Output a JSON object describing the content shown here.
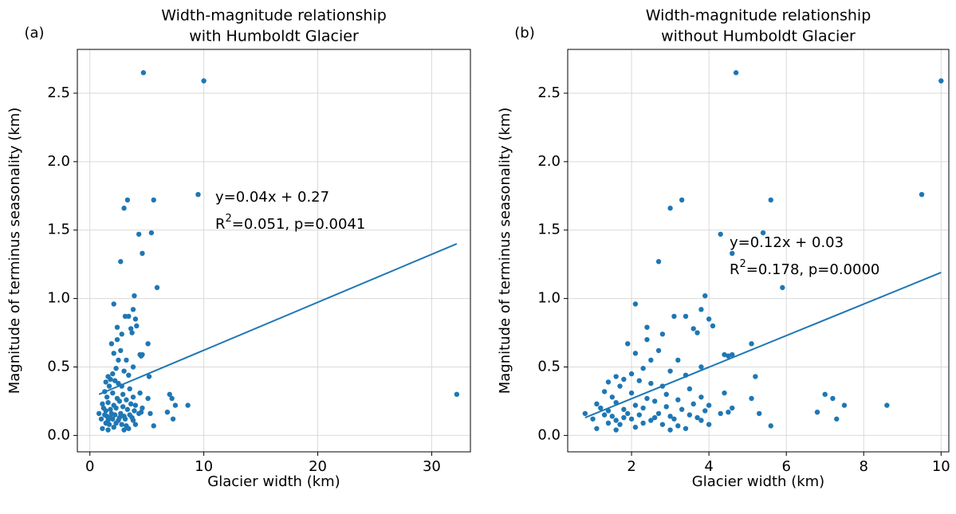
{
  "chart_data": [
    {
      "type": "scatter",
      "panel_label": "(a)",
      "title": [
        "Width-magnitude relationship",
        "with Humboldt Glacier"
      ],
      "xlabel": "Glacier width (km)",
      "ylabel": "Magnitude of terminus seasonality (km)",
      "xlim": [
        -1.1,
        33.4
      ],
      "ylim": [
        -0.12,
        2.82
      ],
      "xticks": [
        0,
        10,
        20,
        30
      ],
      "yticks": [
        {
          "value": 0,
          "label": "0.0"
        },
        0.5,
        {
          "value": 1,
          "label": "1.0"
        },
        1.5,
        {
          "value": 2,
          "label": "2.0"
        },
        2.5
      ],
      "grid": true,
      "series": [
        {
          "color": "#1f77b4",
          "x": [
            4.7,
            10.0,
            9.5,
            3.3,
            5.6,
            3.0,
            4.3,
            5.4,
            4.6,
            2.7,
            5.9,
            3.9,
            2.1,
            3.8,
            3.4,
            3.1,
            3.6,
            3.7,
            4.1,
            4.0,
            2.8,
            2.4,
            2.4,
            1.9,
            2.1,
            2.7,
            5.1,
            2.5,
            3.2,
            4.6,
            4.5,
            3.8,
            2.3,
            1.6,
            2.0,
            3.0,
            2.2,
            3.4,
            5.2,
            1.4,
            1.8,
            2.5,
            1.7,
            2.8,
            3.5,
            1.3,
            2.0,
            2.9,
            4.4,
            7.0,
            7.2,
            5.1,
            3.8,
            1.5,
            2.4,
            3.2,
            1.1,
            1.6,
            2.1,
            2.6,
            3.6,
            4.0,
            7.5,
            8.6,
            1.2,
            1.4,
            1.8,
            2.3,
            2.9,
            3.3,
            3.9,
            4.6,
            4.5,
            6.8,
            0.8,
            1.3,
            1.5,
            1.9,
            2.2,
            2.7,
            3.0,
            3.5,
            4.3,
            5.3,
            1.0,
            1.6,
            2.0,
            2.5,
            3.1,
            3.7,
            7.3,
            1.4,
            1.7,
            2.3,
            2.8,
            3.2,
            4.0,
            5.6,
            1.1,
            1.6,
            3.0,
            2.1,
            3.4,
            2.6,
            1.8,
            3.8,
            4.4,
            32.2
          ],
          "values": [
            2.65,
            2.59,
            1.76,
            1.72,
            1.72,
            1.66,
            1.47,
            1.48,
            1.33,
            1.27,
            1.08,
            1.02,
            0.96,
            0.92,
            0.87,
            0.87,
            0.78,
            0.75,
            0.8,
            0.85,
            0.74,
            0.79,
            0.7,
            0.67,
            0.6,
            0.62,
            0.67,
            0.55,
            0.55,
            0.59,
            0.58,
            0.5,
            0.49,
            0.43,
            0.45,
            0.47,
            0.4,
            0.44,
            0.43,
            0.39,
            0.41,
            0.38,
            0.36,
            0.36,
            0.34,
            0.32,
            0.31,
            0.3,
            0.31,
            0.3,
            0.27,
            0.27,
            0.28,
            0.28,
            0.27,
            0.26,
            0.23,
            0.24,
            0.22,
            0.25,
            0.23,
            0.22,
            0.22,
            0.22,
            0.2,
            0.18,
            0.19,
            0.2,
            0.21,
            0.19,
            0.18,
            0.2,
            0.17,
            0.17,
            0.16,
            0.15,
            0.14,
            0.16,
            0.15,
            0.16,
            0.14,
            0.15,
            0.16,
            0.16,
            0.12,
            0.11,
            0.12,
            0.11,
            0.12,
            0.13,
            0.12,
            0.09,
            0.08,
            0.09,
            0.08,
            0.07,
            0.08,
            0.07,
            0.05,
            0.04,
            0.04,
            0.06,
            0.05,
            0.13,
            0.13,
            0.11,
            0.59,
            0.3
          ]
        }
      ],
      "fit": {
        "color": "#1f77b4",
        "x": [
          0.8,
          32.2
        ],
        "values": [
          0.3,
          1.4
        ]
      },
      "equation": "y=0.04x + 0.27",
      "r2": {
        "base": "R",
        "sup": "2",
        "text": "=0.051, p=0.0041"
      }
    },
    {
      "type": "scatter",
      "panel_label": "(b)",
      "title": [
        "Width-magnitude relationship",
        "without Humboldt Glacier"
      ],
      "xlabel": "Glacier width (km)",
      "ylabel": "Magnitude of terminus seasonality (km)",
      "xlim": [
        0.35,
        10.2
      ],
      "ylim": [
        -0.12,
        2.82
      ],
      "xticks": [
        2,
        4,
        6,
        8,
        10
      ],
      "yticks": [
        {
          "value": 0,
          "label": "0.0"
        },
        0.5,
        {
          "value": 1,
          "label": "1.0"
        },
        1.5,
        {
          "value": 2,
          "label": "2.0"
        },
        2.5
      ],
      "grid": true,
      "series": [
        {
          "color": "#1f77b4",
          "x": [
            4.7,
            10.0,
            9.5,
            3.3,
            5.6,
            3.0,
            4.3,
            5.4,
            4.6,
            2.7,
            5.9,
            3.9,
            2.1,
            3.8,
            3.4,
            3.1,
            3.6,
            3.7,
            4.1,
            4.0,
            2.8,
            2.4,
            2.4,
            1.9,
            2.1,
            2.7,
            5.1,
            2.5,
            3.2,
            4.6,
            4.5,
            3.8,
            2.3,
            1.6,
            2.0,
            3.0,
            2.2,
            3.4,
            5.2,
            1.4,
            1.8,
            2.5,
            1.7,
            2.8,
            3.5,
            1.3,
            2.0,
            2.9,
            4.4,
            7.0,
            7.2,
            5.1,
            3.8,
            1.5,
            2.4,
            3.2,
            1.1,
            1.6,
            2.1,
            2.6,
            3.6,
            4.0,
            7.5,
            8.6,
            1.2,
            1.4,
            1.8,
            2.3,
            2.9,
            3.3,
            3.9,
            4.6,
            4.5,
            6.8,
            0.8,
            1.3,
            1.5,
            1.9,
            2.2,
            2.7,
            3.0,
            3.5,
            4.3,
            5.3,
            1.0,
            1.6,
            2.0,
            2.5,
            3.1,
            3.7,
            7.3,
            1.4,
            1.7,
            2.3,
            2.8,
            3.2,
            4.0,
            5.6,
            1.1,
            1.6,
            3.0,
            2.1,
            3.4,
            2.6,
            1.8,
            3.8,
            4.4
          ],
          "values": [
            2.65,
            2.59,
            1.76,
            1.72,
            1.72,
            1.66,
            1.47,
            1.48,
            1.33,
            1.27,
            1.08,
            1.02,
            0.96,
            0.92,
            0.87,
            0.87,
            0.78,
            0.75,
            0.8,
            0.85,
            0.74,
            0.79,
            0.7,
            0.67,
            0.6,
            0.62,
            0.67,
            0.55,
            0.55,
            0.59,
            0.58,
            0.5,
            0.49,
            0.43,
            0.45,
            0.47,
            0.4,
            0.44,
            0.43,
            0.39,
            0.41,
            0.38,
            0.36,
            0.36,
            0.34,
            0.32,
            0.31,
            0.3,
            0.31,
            0.3,
            0.27,
            0.27,
            0.28,
            0.28,
            0.27,
            0.26,
            0.23,
            0.24,
            0.22,
            0.25,
            0.23,
            0.22,
            0.22,
            0.22,
            0.2,
            0.18,
            0.19,
            0.2,
            0.21,
            0.19,
            0.18,
            0.2,
            0.17,
            0.17,
            0.16,
            0.15,
            0.14,
            0.16,
            0.15,
            0.16,
            0.14,
            0.15,
            0.16,
            0.16,
            0.12,
            0.11,
            0.12,
            0.11,
            0.12,
            0.13,
            0.12,
            0.09,
            0.08,
            0.09,
            0.08,
            0.07,
            0.08,
            0.07,
            0.05,
            0.04,
            0.04,
            0.06,
            0.05,
            0.13,
            0.13,
            0.11,
            0.59
          ]
        }
      ],
      "fit": {
        "color": "#1f77b4",
        "x": [
          0.8,
          10.0
        ],
        "values": [
          0.13,
          1.19
        ]
      },
      "equation": "y=0.12x + 0.03",
      "r2": {
        "base": "R",
        "sup": "2",
        "text": "=0.178, p=0.0000"
      }
    }
  ]
}
